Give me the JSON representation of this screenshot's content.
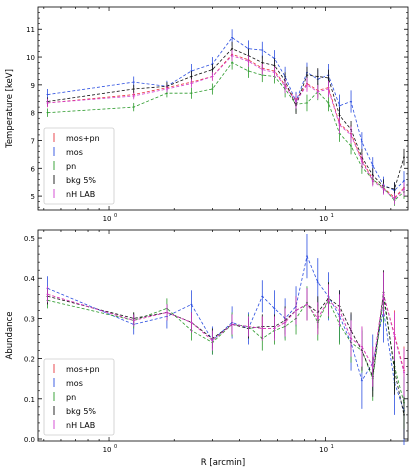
{
  "chart_data": [
    {
      "type": "line",
      "ylabel": "Temperature [keV]",
      "xlabel": "",
      "xscale": "log",
      "xlim": [
        0.47,
        24
      ],
      "ylim": [
        4.5,
        11.8
      ],
      "yticks": [
        5,
        6,
        7,
        8,
        9,
        10,
        11
      ],
      "xtick_labels": [
        "10^0",
        "10^1"
      ],
      "x": [
        0.52,
        1.3,
        1.85,
        2.4,
        3.0,
        3.7,
        4.4,
        5.1,
        5.8,
        6.5,
        7.3,
        8.2,
        9.2,
        10.3,
        11.6,
        13.1,
        14.7,
        16.5,
        18.5,
        20.8,
        23.0
      ],
      "legend_position": "lower-left",
      "series": [
        {
          "name": "mos+pn",
          "color": "#e8373d",
          "values": [
            8.35,
            8.65,
            8.9,
            9.1,
            9.3,
            10.1,
            9.9,
            9.6,
            9.5,
            9.0,
            8.45,
            9.05,
            8.8,
            8.9,
            7.6,
            7.25,
            6.3,
            5.6,
            5.3,
            4.95,
            5.3
          ],
          "errors": [
            0.15,
            0.12,
            0.12,
            0.15,
            0.15,
            0.2,
            0.2,
            0.2,
            0.2,
            0.25,
            0.25,
            0.25,
            0.25,
            0.3,
            0.3,
            0.3,
            0.25,
            0.2,
            0.2,
            0.2,
            0.25
          ]
        },
        {
          "name": "mos",
          "color": "#2b4ee0",
          "values": [
            8.65,
            9.1,
            8.95,
            9.5,
            9.75,
            10.7,
            10.3,
            10.25,
            9.95,
            9.3,
            8.4,
            9.45,
            9.2,
            9.35,
            8.25,
            8.4,
            6.95,
            6.1,
            5.4,
            5.2,
            5.55
          ],
          "errors": [
            0.2,
            0.2,
            0.2,
            0.25,
            0.25,
            0.3,
            0.3,
            0.3,
            0.3,
            0.35,
            0.35,
            0.35,
            0.35,
            0.4,
            0.4,
            0.4,
            0.35,
            0.3,
            0.3,
            0.3,
            0.35
          ]
        },
        {
          "name": "pn",
          "color": "#2a9a2a",
          "values": [
            8.0,
            8.2,
            8.7,
            8.7,
            8.85,
            9.8,
            9.5,
            9.35,
            9.3,
            8.85,
            8.3,
            8.35,
            8.75,
            8.35,
            7.25,
            6.8,
            6.05,
            5.6,
            5.3,
            4.85,
            5.15
          ],
          "errors": [
            0.15,
            0.15,
            0.15,
            0.2,
            0.2,
            0.25,
            0.25,
            0.25,
            0.25,
            0.3,
            0.3,
            0.3,
            0.3,
            0.3,
            0.3,
            0.3,
            0.25,
            0.2,
            0.2,
            0.2,
            0.25
          ]
        },
        {
          "name": "bkg 5%",
          "color": "#111111",
          "values": [
            8.4,
            8.85,
            8.95,
            9.3,
            9.55,
            10.3,
            10.05,
            9.8,
            9.7,
            9.15,
            8.25,
            9.35,
            9.3,
            9.25,
            7.9,
            7.4,
            6.4,
            5.75,
            5.35,
            5.25,
            6.4
          ],
          "errors": [
            0.15,
            0.15,
            0.15,
            0.2,
            0.2,
            0.25,
            0.25,
            0.25,
            0.25,
            0.3,
            0.3,
            0.3,
            0.3,
            0.3,
            0.3,
            0.3,
            0.3,
            0.25,
            0.25,
            0.25,
            0.3
          ]
        },
        {
          "name": "nH LAB",
          "color": "#d23fd2",
          "values": [
            8.35,
            8.6,
            8.85,
            9.05,
            9.3,
            10.05,
            9.85,
            9.55,
            9.45,
            8.95,
            8.4,
            9.0,
            8.75,
            8.85,
            7.55,
            7.2,
            6.25,
            5.55,
            5.25,
            4.9,
            5.25
          ],
          "errors": [
            0.15,
            0.12,
            0.12,
            0.15,
            0.15,
            0.2,
            0.2,
            0.2,
            0.2,
            0.25,
            0.25,
            0.25,
            0.25,
            0.3,
            0.3,
            0.3,
            0.25,
            0.2,
            0.2,
            0.2,
            0.25
          ]
        }
      ]
    },
    {
      "type": "line",
      "ylabel": "Abundance",
      "xlabel": "R [arcmin]",
      "xscale": "log",
      "xlim": [
        0.47,
        24
      ],
      "ylim": [
        -0.005,
        0.52
      ],
      "yticks": [
        0.0,
        0.1,
        0.2,
        0.3,
        0.4,
        0.5
      ],
      "ytick_labels": [
        "0.0",
        "0.1",
        "0.2",
        "0.3",
        "0.4",
        "0.5"
      ],
      "xtick_labels": [
        "10^0",
        "10^1"
      ],
      "x": [
        0.52,
        1.3,
        1.85,
        2.4,
        3.0,
        3.7,
        4.4,
        5.1,
        5.8,
        6.5,
        7.3,
        8.2,
        9.2,
        10.3,
        11.6,
        13.1,
        14.7,
        16.5,
        18.5,
        20.8,
        23.0
      ],
      "legend_position": "lower-left",
      "series": [
        {
          "name": "mos+pn",
          "color": "#e8373d",
          "values": [
            0.36,
            0.295,
            0.315,
            0.29,
            0.245,
            0.285,
            0.28,
            0.275,
            0.275,
            0.29,
            0.32,
            0.335,
            0.3,
            0.345,
            0.32,
            0.25,
            0.23,
            0.18,
            0.36,
            0.26,
            0.17
          ],
          "errors": [
            0.02,
            0.015,
            0.02,
            0.025,
            0.025,
            0.025,
            0.025,
            0.03,
            0.03,
            0.035,
            0.035,
            0.04,
            0.04,
            0.04,
            0.04,
            0.045,
            0.05,
            0.05,
            0.055,
            0.06,
            0.06
          ]
        },
        {
          "name": "mos",
          "color": "#2b4ee0",
          "values": [
            0.375,
            0.285,
            0.305,
            0.335,
            0.245,
            0.29,
            0.275,
            0.355,
            0.325,
            0.3,
            0.33,
            0.455,
            0.39,
            0.355,
            0.305,
            0.24,
            0.145,
            0.19,
            0.32,
            0.14,
            0.07
          ],
          "errors": [
            0.03,
            0.025,
            0.03,
            0.035,
            0.035,
            0.04,
            0.04,
            0.04,
            0.045,
            0.05,
            0.05,
            0.055,
            0.06,
            0.06,
            0.065,
            0.07,
            0.07,
            0.07,
            0.08,
            0.08,
            0.085
          ]
        },
        {
          "name": "pn",
          "color": "#2a9a2a",
          "values": [
            0.345,
            0.295,
            0.325,
            0.27,
            0.24,
            0.285,
            0.28,
            0.25,
            0.27,
            0.28,
            0.3,
            0.34,
            0.29,
            0.345,
            0.285,
            0.24,
            0.22,
            0.15,
            0.35,
            0.18,
            0.09
          ],
          "errors": [
            0.02,
            0.02,
            0.025,
            0.025,
            0.03,
            0.03,
            0.03,
            0.03,
            0.035,
            0.035,
            0.04,
            0.04,
            0.045,
            0.045,
            0.05,
            0.05,
            0.055,
            0.055,
            0.06,
            0.06,
            0.065
          ]
        },
        {
          "name": "bkg 5%",
          "color": "#111111",
          "values": [
            0.355,
            0.3,
            0.315,
            0.29,
            0.25,
            0.285,
            0.275,
            0.28,
            0.28,
            0.295,
            0.32,
            0.335,
            0.315,
            0.35,
            0.33,
            0.27,
            0.22,
            0.155,
            0.365,
            0.17,
            0.06
          ],
          "errors": [
            0.02,
            0.015,
            0.02,
            0.025,
            0.025,
            0.025,
            0.025,
            0.03,
            0.03,
            0.035,
            0.035,
            0.04,
            0.04,
            0.04,
            0.04,
            0.045,
            0.05,
            0.05,
            0.055,
            0.06,
            0.06
          ]
        },
        {
          "name": "nH LAB",
          "color": "#d23fd2",
          "values": [
            0.36,
            0.295,
            0.315,
            0.29,
            0.245,
            0.285,
            0.28,
            0.275,
            0.275,
            0.29,
            0.32,
            0.335,
            0.3,
            0.345,
            0.32,
            0.25,
            0.23,
            0.18,
            0.36,
            0.255,
            0.165
          ],
          "errors": [
            0.02,
            0.015,
            0.02,
            0.025,
            0.025,
            0.025,
            0.025,
            0.03,
            0.03,
            0.035,
            0.035,
            0.04,
            0.04,
            0.04,
            0.04,
            0.045,
            0.05,
            0.05,
            0.055,
            0.06,
            0.06
          ]
        }
      ]
    }
  ]
}
